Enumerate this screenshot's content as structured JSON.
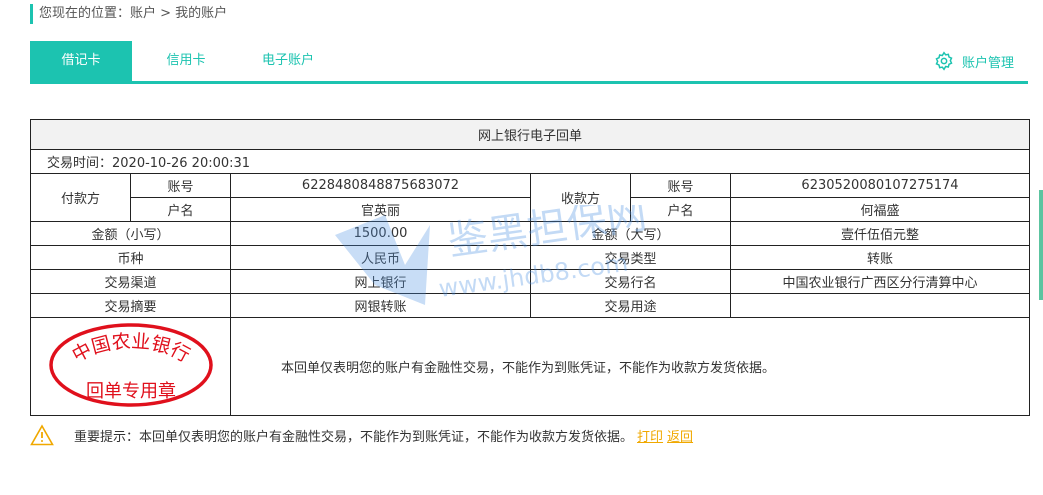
{
  "breadcrumb": "您现在的位置：账户 > 我的账户",
  "tabs": [
    {
      "label": "借记卡",
      "active": true
    },
    {
      "label": "信用卡"
    },
    {
      "label": "电子账户"
    }
  ],
  "account_manage": {
    "label": "账户管理",
    "icon": "gear-icon"
  },
  "receipt": {
    "title": "网上银行电子回单",
    "time": "交易时间：2020-10-26 20:00:31",
    "payer_label": "付款方",
    "payee_label": "收款方",
    "acct_label": "账号",
    "name_label": "户名",
    "payer_acct": "6228480848875683072",
    "payer_name": "官英丽",
    "payee_acct": "6230520080107275174",
    "payee_name": "何福盛",
    "amount_small_label": "金额（小写）",
    "amount_small": "1500.00",
    "amount_big_label": "金额（大写）",
    "amount_big": "壹仟伍佰元整",
    "currency_label": "币种",
    "currency": "人民币",
    "type_label": "交易类型",
    "type": "转账",
    "channel_label": "交易渠道",
    "channel": "网上银行",
    "bank_label": "交易行名",
    "bank": "中国农业银行广西区分行清算中心",
    "summary_label": "交易摘要",
    "summary": "网银转账",
    "purpose_label": "交易用途",
    "purpose": "",
    "stamp_top": "中国农业银行",
    "stamp_bottom": "回单专用章",
    "note": "本回单仅表明您的账户有金融性交易，不能作为到账凭证，不能作为收款方发货依据。"
  },
  "tip": {
    "text": "重要提示：本回单仅表明您的账户有金融性交易，不能作为到账凭证，不能作为收款方发货依据。",
    "print": "打印",
    "back": "返回"
  },
  "watermark": {
    "name": "鉴黑担保网",
    "url": "www.jhdb8.com"
  },
  "colors": {
    "accent": "#1cc3b0",
    "stamp": "#e0101c",
    "link": "#f0a800"
  }
}
